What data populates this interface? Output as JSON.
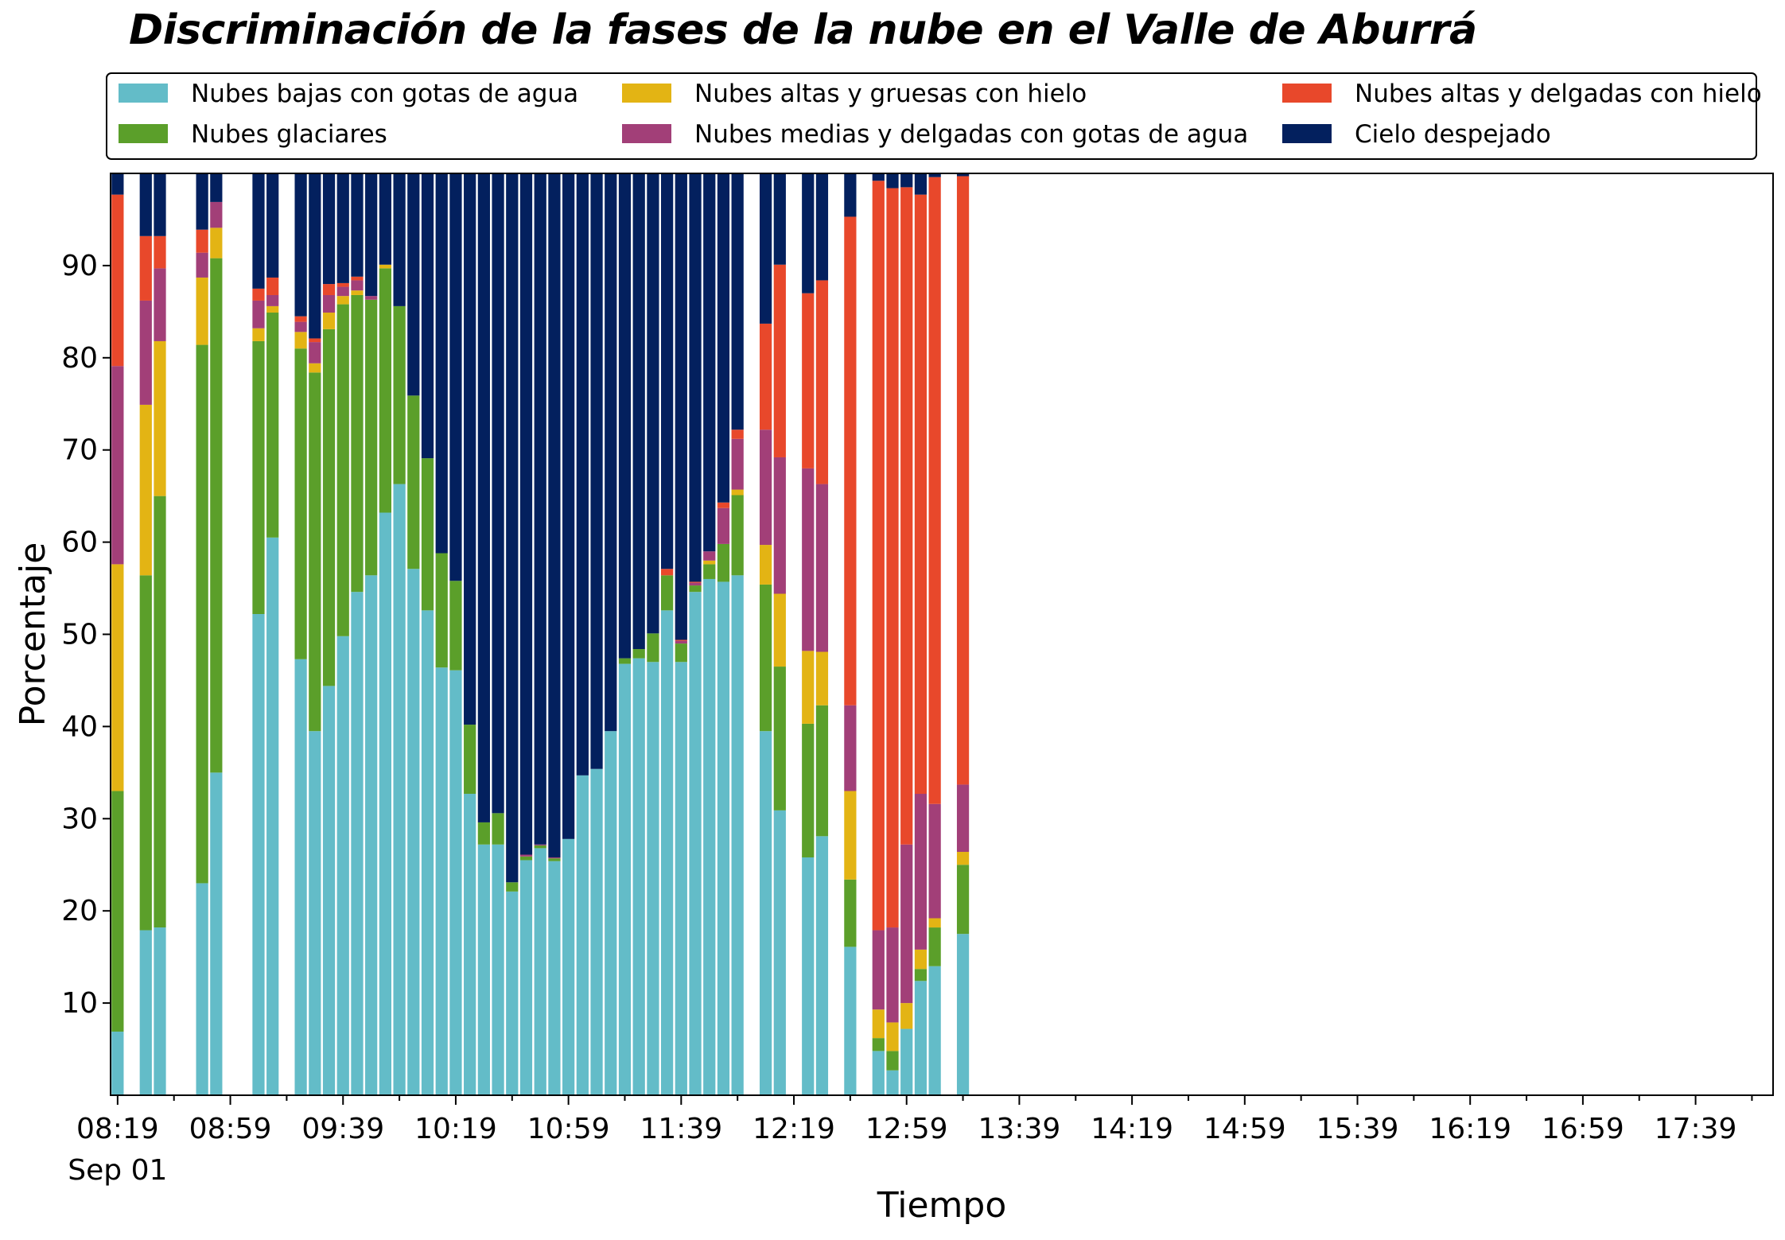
{
  "chart_data": {
    "type": "bar",
    "stacked": true,
    "title": "Discriminación de la fases de la nube en el Valle de Aburrá",
    "xlabel": "Tiempo",
    "ylabel": "Porcentaje",
    "ylim": [
      0,
      100
    ],
    "yticks": [
      10,
      20,
      30,
      40,
      50,
      60,
      70,
      80,
      90
    ],
    "date_label": "Sep 01",
    "grid": false,
    "legend_placement": "top (above plot, 3 columns)",
    "slot_minutes": 5,
    "slots": [
      "08:19",
      "08:24",
      "08:29",
      "08:34",
      "08:39",
      "08:44",
      "08:49",
      "08:54",
      "08:59",
      "09:04",
      "09:09",
      "09:14",
      "09:19",
      "09:24",
      "09:29",
      "09:34",
      "09:39",
      "09:44",
      "09:49",
      "09:54",
      "09:59",
      "10:04",
      "10:09",
      "10:14",
      "10:19",
      "10:24",
      "10:29",
      "10:34",
      "10:39",
      "10:44",
      "10:49",
      "10:54",
      "10:59",
      "11:04",
      "11:09",
      "11:14",
      "11:19",
      "11:24",
      "11:29",
      "11:34",
      "11:39",
      "11:44",
      "11:49",
      "11:54",
      "11:59",
      "12:04",
      "12:09",
      "12:14",
      "12:19",
      "12:24",
      "12:29",
      "12:34",
      "12:39",
      "12:44",
      "12:49",
      "12:54",
      "12:59",
      "13:04",
      "13:09",
      "13:14",
      "13:19",
      "13:24",
      "13:29",
      "13:34",
      "13:39",
      "13:44",
      "13:49",
      "13:54",
      "13:59",
      "14:04",
      "14:09",
      "14:14",
      "14:19",
      "14:24",
      "14:29",
      "14:34",
      "14:39",
      "14:44",
      "14:49",
      "14:54",
      "14:59",
      "15:04",
      "15:09",
      "15:14",
      "15:19",
      "15:24",
      "15:29",
      "15:34",
      "15:39",
      "15:44",
      "15:49",
      "15:54",
      "15:59",
      "16:04",
      "16:09",
      "16:14",
      "16:19",
      "16:24",
      "16:29",
      "16:34",
      "16:39",
      "16:44",
      "16:49",
      "16:54",
      "16:59",
      "17:04",
      "17:09",
      "17:14",
      "17:19",
      "17:24",
      "17:29",
      "17:34",
      "17:39",
      "17:44",
      "17:49",
      "17:54",
      "17:59",
      "18:04"
    ],
    "xticklabels": [
      "08:19",
      "08:59",
      "09:39",
      "10:19",
      "10:59",
      "11:39",
      "12:19",
      "12:59",
      "13:39",
      "14:19",
      "14:59",
      "15:39",
      "16:19",
      "16:59",
      "17:39"
    ],
    "series": [
      {
        "name": "Nubes bajas con gotas de agua",
        "color": "#63bcc8"
      },
      {
        "name": "Nubes glaciares",
        "color": "#5b9f2a"
      },
      {
        "name": "Nubes altas y gruesas con hielo",
        "color": "#e3b414"
      },
      {
        "name": "Nubes medias y delgadas con gotas de agua",
        "color": "#a23f78"
      },
      {
        "name": "Nubes altas y delgadas con hielo",
        "color": "#e8482b"
      },
      {
        "name": "Cielo despejado",
        "color": "#03205e"
      }
    ],
    "bars": [
      {
        "x": "08:19",
        "values": [
          6.9,
          26.1,
          24.6,
          21.5,
          18.6,
          2.3
        ]
      },
      {
        "x": "08:29",
        "values": [
          17.9,
          38.5,
          18.5,
          11.3,
          7.0,
          6.8
        ]
      },
      {
        "x": "08:34",
        "values": [
          18.2,
          46.8,
          16.8,
          7.9,
          3.5,
          6.8
        ]
      },
      {
        "x": "08:49",
        "values": [
          23.0,
          58.4,
          7.3,
          2.7,
          2.5,
          6.1
        ]
      },
      {
        "x": "08:54",
        "values": [
          35.0,
          55.8,
          3.3,
          2.8,
          0,
          3.1
        ]
      },
      {
        "x": "09:09",
        "values": [
          52.2,
          29.6,
          1.4,
          3.0,
          1.3,
          12.5
        ]
      },
      {
        "x": "09:14",
        "values": [
          60.5,
          24.4,
          0.7,
          1.2,
          1.9,
          11.3
        ]
      },
      {
        "x": "09:24",
        "values": [
          47.3,
          33.7,
          1.8,
          1.1,
          0.6,
          15.5
        ]
      },
      {
        "x": "09:29",
        "values": [
          39.5,
          38.9,
          1.0,
          2.3,
          0.4,
          17.9
        ]
      },
      {
        "x": "09:34",
        "values": [
          44.4,
          38.7,
          1.8,
          1.9,
          1.2,
          12.0
        ]
      },
      {
        "x": "09:39",
        "values": [
          49.8,
          36.0,
          0.9,
          1.0,
          0.4,
          11.9
        ]
      },
      {
        "x": "09:44",
        "values": [
          54.6,
          32.2,
          0.5,
          1.1,
          0.4,
          11.2
        ]
      },
      {
        "x": "09:49",
        "values": [
          56.4,
          29.9,
          0,
          0.4,
          0,
          13.3
        ]
      },
      {
        "x": "09:54",
        "values": [
          63.2,
          26.5,
          0.4,
          0,
          0,
          9.9
        ]
      },
      {
        "x": "09:59",
        "values": [
          66.3,
          19.3,
          0,
          0,
          0,
          14.4
        ]
      },
      {
        "x": "10:04",
        "values": [
          57.1,
          18.8,
          0,
          0,
          0,
          24.1
        ]
      },
      {
        "x": "10:09",
        "values": [
          52.6,
          16.5,
          0,
          0,
          0,
          30.9
        ]
      },
      {
        "x": "10:14",
        "values": [
          46.4,
          12.4,
          0,
          0,
          0,
          41.2
        ]
      },
      {
        "x": "10:19",
        "values": [
          46.1,
          9.7,
          0,
          0,
          0,
          44.2
        ]
      },
      {
        "x": "10:24",
        "values": [
          32.7,
          7.5,
          0,
          0,
          0,
          59.8
        ]
      },
      {
        "x": "10:29",
        "values": [
          27.2,
          2.4,
          0,
          0,
          0,
          70.4
        ]
      },
      {
        "x": "10:34",
        "values": [
          27.2,
          3.4,
          0,
          0,
          0,
          69.4
        ]
      },
      {
        "x": "10:39",
        "values": [
          22.1,
          1.0,
          0,
          0,
          0,
          76.9
        ]
      },
      {
        "x": "10:44",
        "values": [
          25.5,
          0.4,
          0,
          0.2,
          0,
          73.9
        ]
      },
      {
        "x": "10:49",
        "values": [
          26.8,
          0.3,
          0,
          0.1,
          0,
          72.8
        ]
      },
      {
        "x": "10:54",
        "values": [
          25.4,
          0.3,
          0,
          0.1,
          0,
          74.2
        ]
      },
      {
        "x": "10:59",
        "values": [
          27.8,
          0,
          0,
          0,
          0,
          72.2
        ]
      },
      {
        "x": "11:04",
        "values": [
          34.7,
          0,
          0,
          0,
          0,
          65.3
        ]
      },
      {
        "x": "11:09",
        "values": [
          35.4,
          0,
          0,
          0,
          0,
          64.6
        ]
      },
      {
        "x": "11:14",
        "values": [
          39.5,
          0,
          0,
          0,
          0,
          60.5
        ]
      },
      {
        "x": "11:19",
        "values": [
          46.8,
          0.6,
          0,
          0,
          0,
          52.6
        ]
      },
      {
        "x": "11:24",
        "values": [
          47.4,
          1.0,
          0,
          0,
          0,
          51.6
        ]
      },
      {
        "x": "11:29",
        "values": [
          47.0,
          3.1,
          0,
          0,
          0,
          49.9
        ]
      },
      {
        "x": "11:34",
        "values": [
          52.6,
          3.8,
          0,
          0,
          0.7,
          42.9
        ]
      },
      {
        "x": "11:39",
        "values": [
          47.0,
          2.0,
          0,
          0.3,
          0.1,
          50.6
        ]
      },
      {
        "x": "11:44",
        "values": [
          54.6,
          0.7,
          0,
          0.3,
          0.1,
          44.3
        ]
      },
      {
        "x": "11:49",
        "values": [
          56.0,
          1.6,
          0.4,
          1.0,
          0,
          41.0
        ]
      },
      {
        "x": "11:54",
        "values": [
          55.7,
          4.1,
          0,
          3.9,
          0.6,
          35.7
        ]
      },
      {
        "x": "11:59",
        "values": [
          56.4,
          8.7,
          0.6,
          5.5,
          1.0,
          27.8
        ]
      },
      {
        "x": "12:09",
        "values": [
          39.5,
          15.9,
          4.3,
          12.5,
          11.5,
          16.3
        ]
      },
      {
        "x": "12:14",
        "values": [
          30.9,
          15.6,
          7.9,
          14.8,
          20.9,
          9.9
        ]
      },
      {
        "x": "12:24",
        "values": [
          25.8,
          14.5,
          7.9,
          19.8,
          19.0,
          13.0
        ]
      },
      {
        "x": "12:29",
        "values": [
          28.1,
          14.2,
          5.8,
          18.2,
          22.1,
          11.6
        ]
      },
      {
        "x": "12:39",
        "values": [
          16.1,
          7.3,
          9.6,
          9.3,
          53.0,
          4.7
        ]
      },
      {
        "x": "12:49",
        "values": [
          4.8,
          1.4,
          3.1,
          8.6,
          81.3,
          0.8
        ]
      },
      {
        "x": "12:54",
        "values": [
          2.7,
          2.1,
          3.1,
          10.3,
          80.2,
          1.6
        ]
      },
      {
        "x": "12:59",
        "values": [
          7.2,
          0,
          2.8,
          17.2,
          71.3,
          1.6
        ]
      },
      {
        "x": "13:04",
        "values": [
          12.4,
          1.3,
          2.1,
          16.9,
          65.0,
          2.3
        ]
      },
      {
        "x": "13:09",
        "values": [
          14.0,
          4.2,
          1.0,
          12.4,
          68.0,
          0.4
        ]
      },
      {
        "x": "13:19",
        "values": [
          17.5,
          7.5,
          1.4,
          7.3,
          66.0,
          0.3
        ]
      }
    ]
  }
}
